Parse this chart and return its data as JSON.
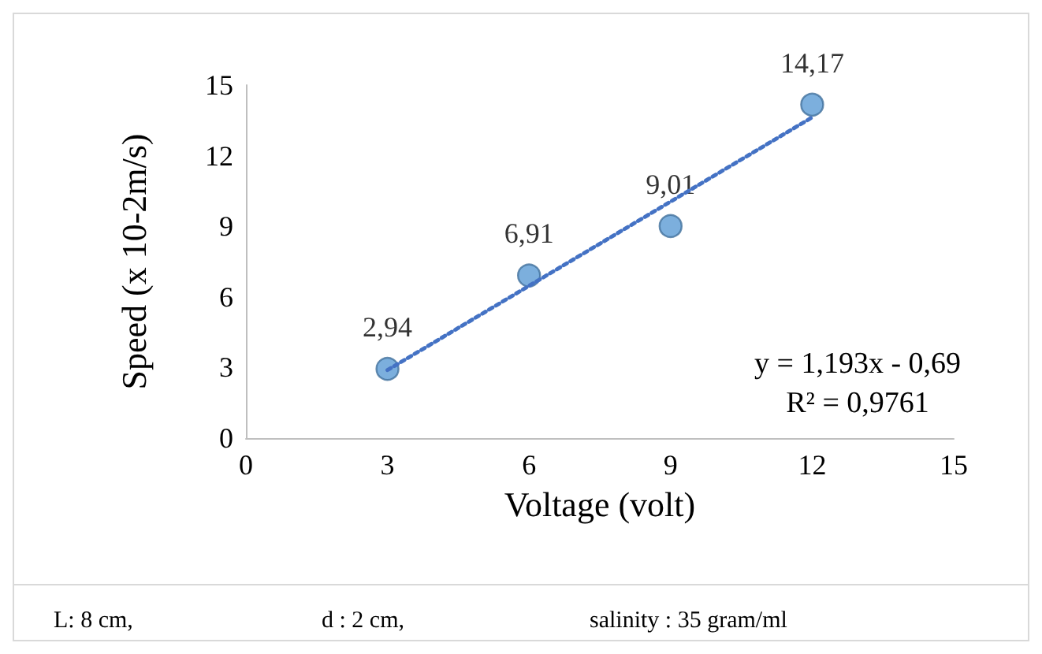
{
  "chart_data": {
    "type": "scatter",
    "xlabel": "Voltage (volt)",
    "ylabel": "Speed (x 10-2m/s)",
    "xlim": [
      0,
      15
    ],
    "xticks": [
      0,
      3,
      6,
      9,
      12,
      15
    ],
    "ylim": [
      0,
      15
    ],
    "yticks": [
      0,
      3,
      6,
      9,
      12,
      15
    ],
    "grid": false,
    "marker": "circle",
    "annotations": [
      "y = 1,193x - 0,69",
      "R² = 0,9761",
      "L: 8 cm,",
      "d : 2 cm,",
      "salinity : 35 gram/ml"
    ],
    "series": [
      {
        "color": "#5b9bd5",
        "x": [
          3,
          6,
          9,
          12
        ],
        "values": [
          2.94,
          6.91,
          9.01,
          14.17
        ],
        "value_labels": [
          "2,94",
          "6,91",
          "9,01",
          "14,17"
        ]
      },
      {
        "type": "line",
        "color": "#4472c4",
        "x": [
          3,
          12
        ],
        "values": [
          2.89,
          13.63
        ],
        "marker": "none",
        "line_style": "dotted"
      }
    ]
  }
}
